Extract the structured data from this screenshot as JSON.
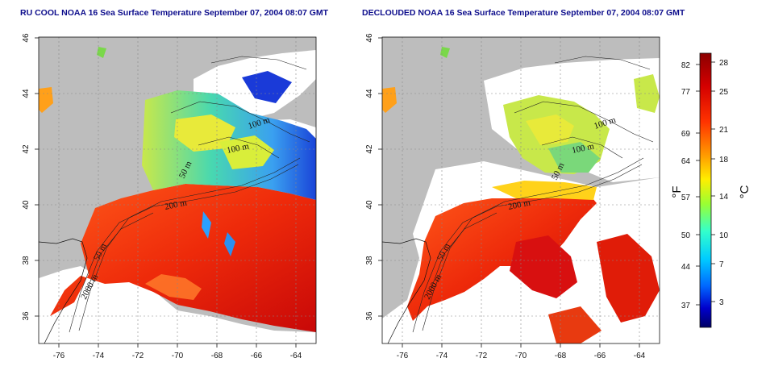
{
  "panels": [
    {
      "id": "left",
      "title": "RU COOL NOAA 16 Sea Surface Temperature September 07, 2004 08:07 GMT",
      "contour_labels": [
        "100 m",
        "100 m",
        "50 m",
        "200 m",
        "50 m",
        "2000 m"
      ]
    },
    {
      "id": "right",
      "title": "DECLOUDED NOAA 16 Sea Surface Temperature September 07, 2004 08:07 GMT",
      "contour_labels": [
        "100 m",
        "100 m",
        "50 m",
        "200 m",
        "50 m",
        "2000 m"
      ]
    }
  ],
  "map_axes": {
    "lon_range": [
      -77,
      -63
    ],
    "lat_range": [
      35,
      46
    ],
    "lon_ticks": [
      "-76",
      "-74",
      "-72",
      "-70",
      "-68",
      "-66",
      "-64"
    ],
    "lat_ticks": [
      "36",
      "38",
      "40",
      "42",
      "44",
      "46"
    ],
    "grid": "dashed"
  },
  "colorbar": {
    "f_label": "°F",
    "c_label": "°C",
    "f_ticks": [
      "82",
      "77",
      "69",
      "64",
      "57",
      "50",
      "44",
      "37"
    ],
    "c_ticks": [
      "28",
      "25",
      "21",
      "18",
      "14",
      "10",
      "7",
      "3"
    ],
    "colors": [
      "#8b0000",
      "#d40000",
      "#ff3300",
      "#ff9900",
      "#ffee00",
      "#99ff33",
      "#33ffcc",
      "#00ccff",
      "#0066ff",
      "#0000cc",
      "#000066"
    ]
  },
  "colors": {
    "land": "#bdbdbd",
    "cloud": "#ffffff",
    "title": "#0d0d8c"
  }
}
